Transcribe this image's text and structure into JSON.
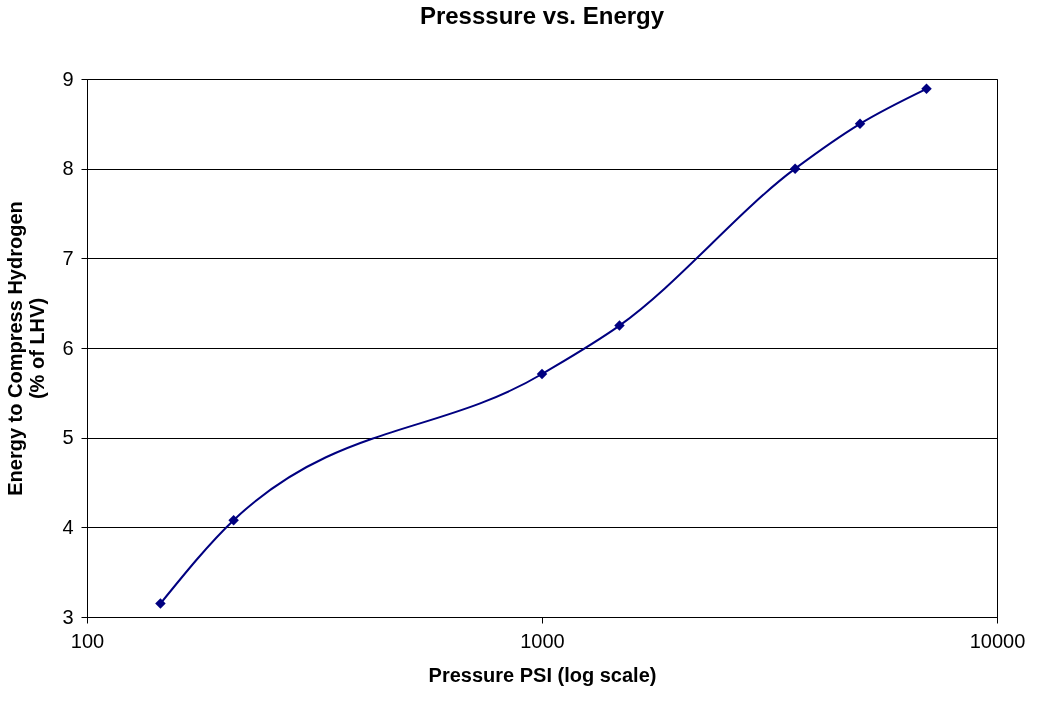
{
  "chart_data": {
    "type": "line",
    "title": "Presssure  vs. Energy",
    "xlabel": "Pressure PSI (log scale)",
    "ylabel": "Energy to Compress Hydrogen (% of LHV)",
    "x": [
      145,
      210,
      1000,
      1480,
      3600,
      5000,
      7000
    ],
    "series": [
      {
        "color": "#000080",
        "values": [
          3.15,
          4.08,
          5.71,
          6.25,
          8.0,
          8.5,
          8.89
        ]
      }
    ],
    "log": "x",
    "xlim": [
      100,
      10000
    ],
    "xticks": [
      100,
      1000,
      10000
    ],
    "ylim": [
      3,
      9
    ],
    "yticks": [
      3,
      4,
      5,
      6,
      7,
      8,
      9
    ],
    "grid": "y",
    "marker": "diamond",
    "line_style": "solid"
  }
}
